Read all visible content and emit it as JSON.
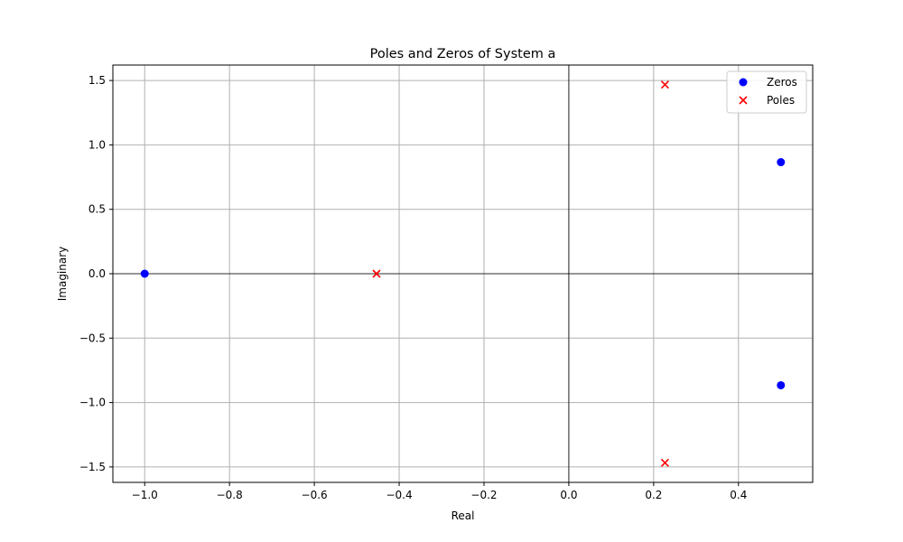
{
  "chart_data": {
    "type": "scatter",
    "title": "Poles and Zeros of System a",
    "xlabel": "Real",
    "ylabel": "Imaginary",
    "xlim": [
      -1.075,
      0.575
    ],
    "ylim": [
      -1.62,
      1.62
    ],
    "xticks": [
      -1.0,
      -0.8,
      -0.6,
      -0.4,
      -0.2,
      0.0,
      0.2,
      0.4
    ],
    "xtick_labels": [
      "−1.0",
      "−0.8",
      "−0.6",
      "−0.4",
      "−0.2",
      "0.0",
      "0.2",
      "0.4"
    ],
    "yticks": [
      -1.5,
      -1.0,
      -0.5,
      0.0,
      0.5,
      1.0,
      1.5
    ],
    "ytick_labels": [
      "−1.5",
      "−1.0",
      "−0.5",
      "0.0",
      "0.5",
      "1.0",
      "1.5"
    ],
    "grid": true,
    "reference_lines": {
      "x": 0,
      "y": 0
    },
    "legend": {
      "position": "top-right"
    },
    "series": [
      {
        "name": "Zeros",
        "marker": "circle",
        "color": "#0000ff",
        "points": [
          [
            -1.0,
            0.0
          ],
          [
            0.5,
            0.866
          ],
          [
            0.5,
            -0.866
          ]
        ]
      },
      {
        "name": "Poles",
        "marker": "x",
        "color": "#ff0000",
        "points": [
          [
            -0.4534,
            0.0
          ],
          [
            0.2267,
            1.4677
          ],
          [
            0.2267,
            -1.4677
          ]
        ]
      }
    ]
  }
}
